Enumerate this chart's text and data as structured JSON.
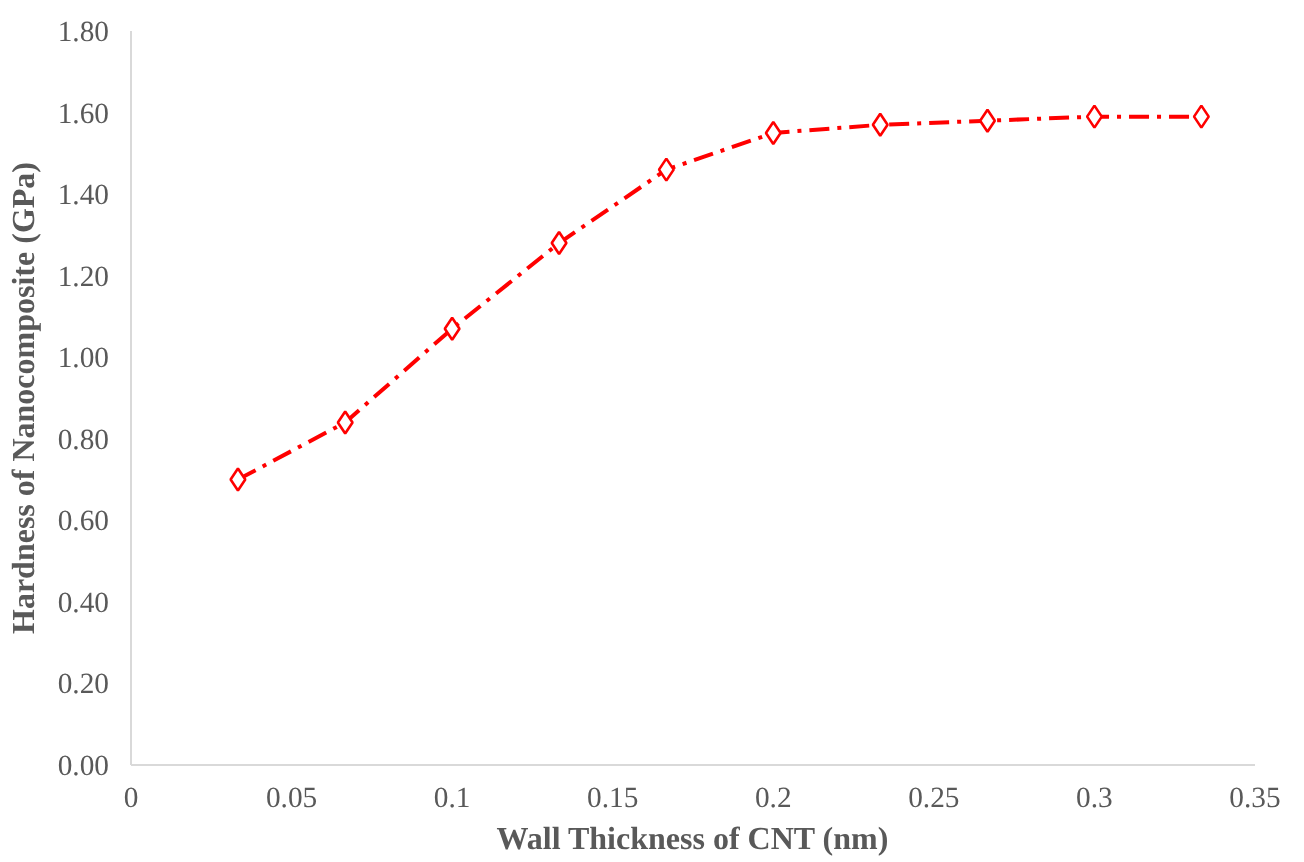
{
  "chart_data": {
    "type": "line",
    "xlabel": "Wall Thickness of CNT (nm)",
    "ylabel": "Hardness of Nanocomposite (GPa)",
    "x": [
      0.0333,
      0.0667,
      0.1,
      0.1333,
      0.1667,
      0.2,
      0.2333,
      0.2667,
      0.3,
      0.3333
    ],
    "series": [
      {
        "color": "#ff0000",
        "values": [
          0.7,
          0.84,
          1.07,
          1.28,
          1.46,
          1.55,
          1.57,
          1.58,
          1.59,
          1.59
        ]
      }
    ],
    "xlim": [
      0,
      0.35
    ],
    "xticks": [
      0,
      0.05,
      0.1,
      0.15,
      0.2,
      0.25,
      0.3,
      0.35
    ],
    "ylim": [
      0,
      1.8
    ],
    "yticks": [
      {
        "value": 0,
        "label": "0.00"
      },
      {
        "value": 0.2,
        "label": "0.20"
      },
      {
        "value": 0.4,
        "label": "0.40"
      },
      {
        "value": 0.6,
        "label": "0.60"
      },
      {
        "value": 0.8,
        "label": "0.80"
      },
      {
        "value": 1.0,
        "label": "1.00"
      },
      {
        "value": 1.2,
        "label": "1.20"
      },
      {
        "value": 1.4,
        "label": "1.40"
      },
      {
        "value": 1.6,
        "label": "1.60"
      },
      {
        "value": 1.8,
        "label": "1.80"
      }
    ],
    "marker": "diamond",
    "line_style": "dashdot",
    "grid": false
  }
}
